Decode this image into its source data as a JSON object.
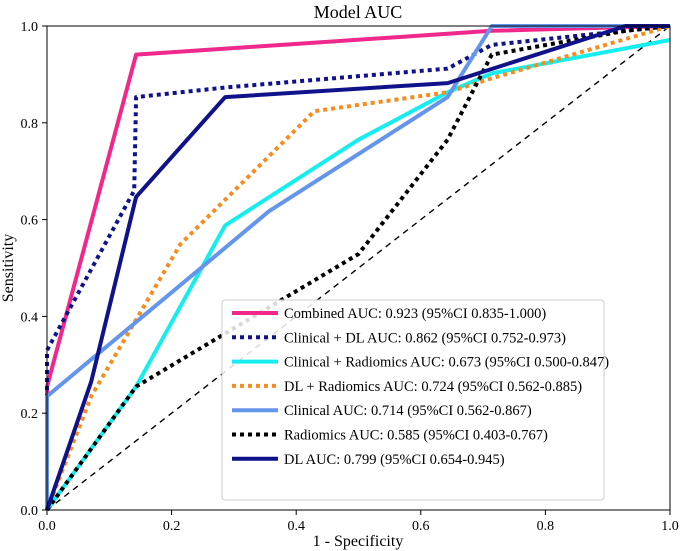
{
  "chart_data": {
    "type": "line",
    "title": "Model AUC",
    "xlabel": "1 - Specificity",
    "ylabel": "Sensitivity",
    "xlim": [
      0,
      1
    ],
    "ylim": [
      0,
      1
    ],
    "xticks": [
      "0.0",
      "0.2",
      "0.4",
      "0.6",
      "0.8",
      "1.0"
    ],
    "yticks": [
      "0.0",
      "0.2",
      "0.4",
      "0.6",
      "0.8",
      "1.0"
    ],
    "xtick_values": [
      0,
      0.2,
      0.4,
      0.6,
      0.8,
      1.0
    ],
    "ytick_values": [
      0,
      0.2,
      0.4,
      0.6,
      0.8,
      1.0
    ],
    "grid": false,
    "legend_position": "lower-right",
    "reference_line": {
      "style": "dashed",
      "color": "#000000",
      "x": [
        0,
        1
      ],
      "y": [
        0,
        1
      ]
    },
    "series": [
      {
        "name": "Combined AUC: 0.923 (95%CI 0.835-1.000)",
        "color": "#F0288C",
        "style": "solid",
        "x": [
          0,
          0,
          0.143,
          0.714,
          1.0
        ],
        "y": [
          0,
          0.255,
          0.941,
          0.99,
          1.0
        ]
      },
      {
        "name": "Clinical + DL AUC: 0.862 (95%CI 0.752-0.973)",
        "color": "#10128A",
        "style": "dotted",
        "x": [
          0,
          0,
          0.14,
          0.143,
          0.286,
          0.643,
          0.714,
          1.0
        ],
        "y": [
          0,
          0.33,
          0.66,
          0.853,
          0.873,
          0.912,
          0.961,
          1.0
        ]
      },
      {
        "name": "Clinical + Radiomics AUC: 0.673 (95%CI 0.500-0.847)",
        "color": "#16EDEE",
        "style": "solid",
        "x": [
          0,
          0.143,
          0.286,
          0.5,
          0.643,
          0.714,
          1.0
        ],
        "y": [
          0,
          0.255,
          0.588,
          0.765,
          0.863,
          0.902,
          0.971
        ]
      },
      {
        "name": "DL + Radiomics AUC: 0.724 (95%CI 0.562-0.885)",
        "color": "#F68C1E",
        "style": "dotted",
        "x": [
          0,
          0.071,
          0.214,
          0.429,
          0.643,
          0.714,
          1.0
        ],
        "y": [
          0,
          0.235,
          0.549,
          0.824,
          0.863,
          0.892,
          1.0
        ]
      },
      {
        "name": "Clinical AUC: 0.714 (95%CI 0.562-0.867)",
        "color": "#6495EB",
        "style": "solid",
        "x": [
          0,
          0,
          0.357,
          0.643,
          0.714,
          1.0
        ],
        "y": [
          0,
          0.235,
          0.618,
          0.853,
          1.0,
          1.0
        ]
      },
      {
        "name": "Radiomics AUC: 0.585 (95%CI 0.403-0.767)",
        "color": "#000000",
        "style": "dotted",
        "x": [
          0,
          0.143,
          0.5,
          0.643,
          0.714,
          0.929,
          1.0
        ],
        "y": [
          0,
          0.255,
          0.529,
          0.765,
          0.941,
          0.99,
          1.0
        ]
      },
      {
        "name": "DL AUC: 0.799 (95%CI 0.654-0.945)",
        "color": "#10128A",
        "style": "solid",
        "x": [
          0,
          0.071,
          0.143,
          0.286,
          0.643,
          0.929,
          1.0
        ],
        "y": [
          0,
          0.265,
          0.647,
          0.853,
          0.882,
          1.0,
          1.0
        ]
      }
    ]
  }
}
